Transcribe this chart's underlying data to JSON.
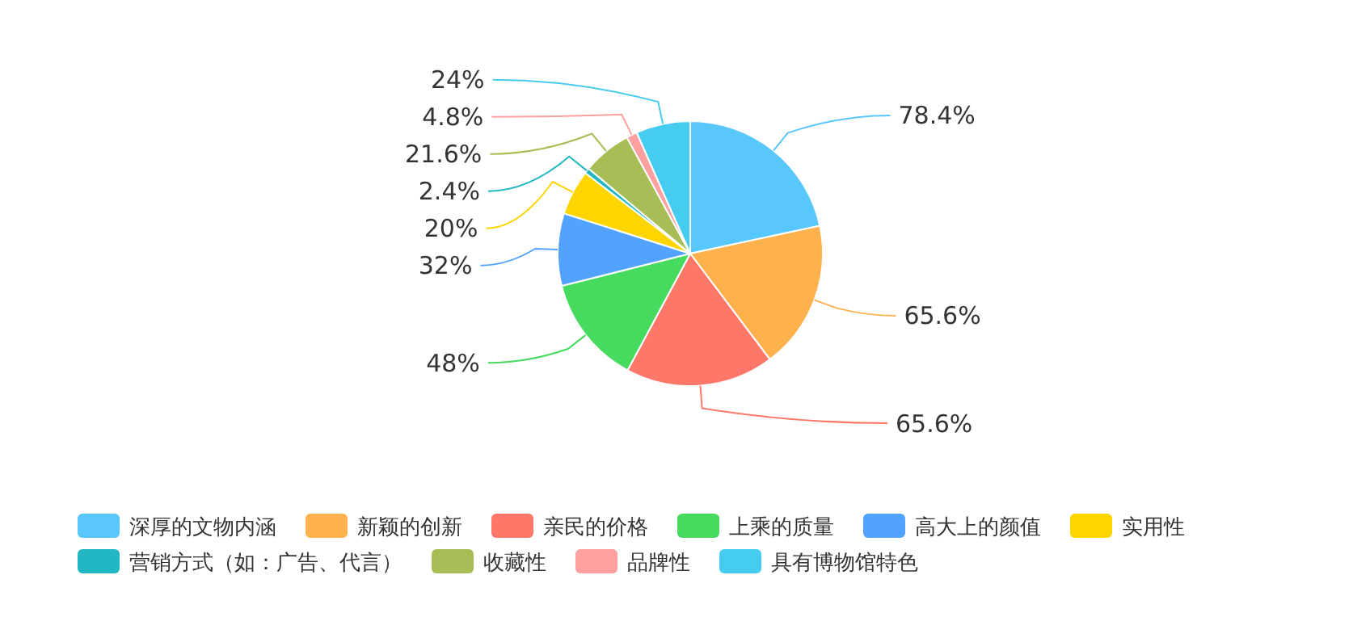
{
  "chart_data": {
    "type": "pie",
    "categories": [
      "深厚的文物内涵",
      "新颖的创新",
      "亲民的价格",
      "上乘的质量",
      "高大上的颜值",
      "实用性",
      "营销方式（如：广告、代言）",
      "收藏性",
      "品牌性",
      "具有博物馆特色"
    ],
    "values": [
      78.4,
      65.6,
      65.6,
      48,
      32,
      20,
      2.4,
      21.6,
      4.8,
      24
    ],
    "value_labels": [
      "78.4%",
      "65.6%",
      "65.6%",
      "48%",
      "32%",
      "20%",
      "2.4%",
      "21.6%",
      "4.8%",
      "24%"
    ],
    "colors": [
      "#58c7fb",
      "#ffb14e",
      "#ff7768",
      "#46db5f",
      "#52a2ff",
      "#ffd500",
      "#23b7c4",
      "#a6be55",
      "#ffa0a0",
      "#46ccf0"
    ],
    "legend": "bottom"
  }
}
